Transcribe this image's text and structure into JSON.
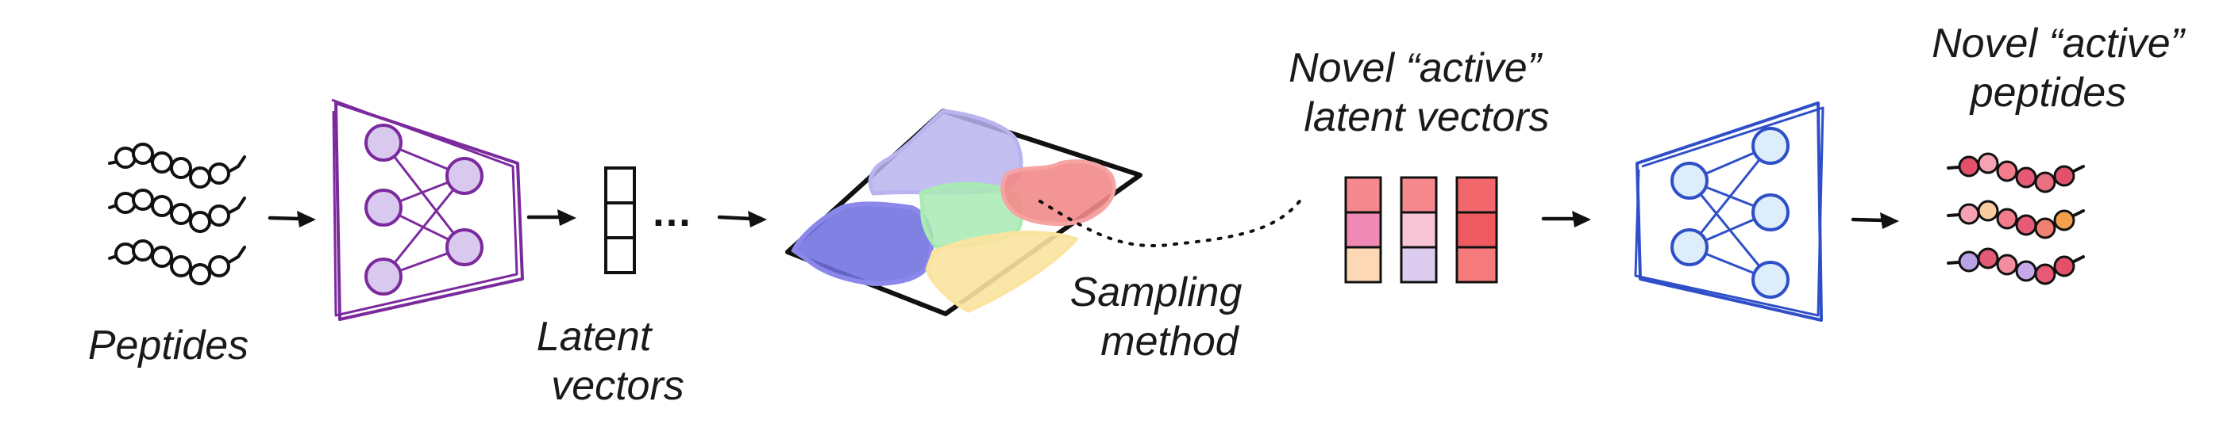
{
  "labels": {
    "peptides": "Peptides",
    "latent_line1": "Latent",
    "latent_line2": "vectors",
    "sampling_line1": "Sampling",
    "sampling_line2": "method",
    "novel_latent_line1": "Novel “active”",
    "novel_latent_line2": "latent vectors",
    "novel_peptides_line1": "Novel “active”",
    "novel_peptides_line2": "peptides"
  },
  "ellipsis": "…",
  "colors": {
    "encoder_stroke": "#7b2a9e",
    "encoder_node_fill": "#d9c9ee",
    "decoder_stroke": "#2f4fc8",
    "decoder_node_fill": "#ddeefa",
    "region_blue": "#6f6fe0",
    "region_lavender": "#b9b4ef",
    "region_green": "#a9eab3",
    "region_red": "#f38a8a",
    "region_yellow": "#fbe3a0",
    "latent_cells": [
      [
        "#f5898e",
        "#f08ab4",
        "#fcd9b4"
      ],
      [
        "#f5898e",
        "#f8c5d6",
        "#dccdf0"
      ],
      [
        "#f2676b",
        "#ee5a5f",
        "#f57a7c"
      ]
    ],
    "output_beads": [
      [
        "#e2506a",
        "#f5a3b2",
        "#f07c8c",
        "#e65a75",
        "#e87080",
        "#e2506a"
      ],
      [
        "#f5a3b2",
        "#f9cc9e",
        "#f07c8c",
        "#e65a75",
        "#f08070",
        "#f3a04a"
      ],
      [
        "#b9a2e6",
        "#e25a74",
        "#f28ea0",
        "#c5a8e8",
        "#e65a75",
        "#e2506a"
      ]
    ]
  }
}
